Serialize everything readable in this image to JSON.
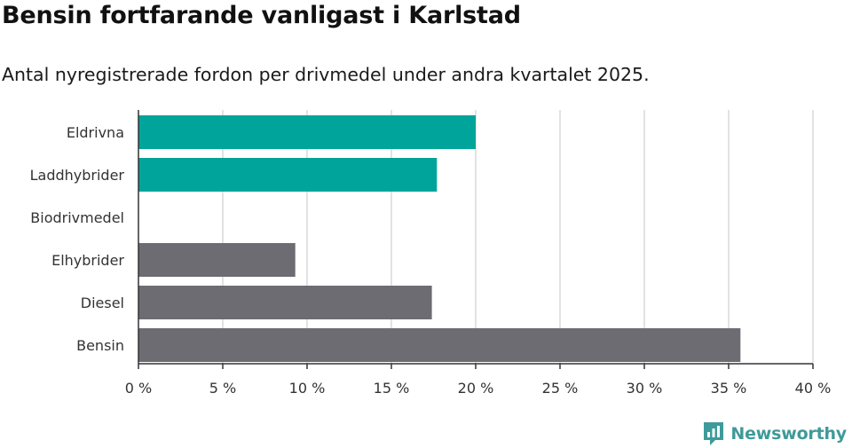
{
  "header": {
    "title": "Bensin fortfarande vanligast i Karlstad",
    "subtitle": "Antal nyregistrerade fordon per drivmedel under andra kvartalet 2025."
  },
  "brand": {
    "name": "Newsworthy",
    "logo_icon": "bar-chart-logo-icon",
    "color": "#3f9a9a"
  },
  "colors": {
    "highlight": "#00a49a",
    "default": "#6d6c72",
    "grid": "#d9d9d9",
    "axis": "#333333"
  },
  "chart_data": {
    "type": "bar",
    "orientation": "horizontal",
    "categories": [
      "Eldrivna",
      "Laddhybrider",
      "Biodrivmedel",
      "Elhybrider",
      "Diesel",
      "Bensin"
    ],
    "values": [
      20.0,
      17.7,
      0,
      9.3,
      17.4,
      35.7
    ],
    "highlighted": [
      true,
      true,
      false,
      false,
      false,
      false
    ],
    "xlim": [
      0,
      40
    ],
    "xticks": [
      0,
      5,
      10,
      15,
      20,
      25,
      30,
      35,
      40
    ],
    "tick_suffix": " %",
    "grid": true
  }
}
